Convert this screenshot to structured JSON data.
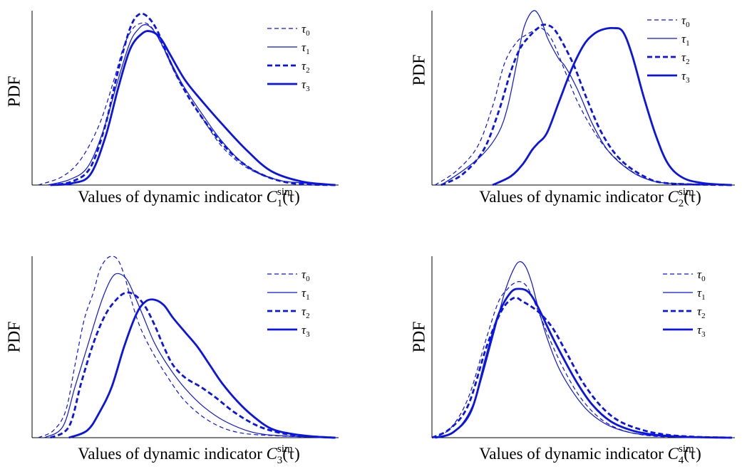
{
  "colors": {
    "line": "#0a14e6",
    "axis": "#000000"
  },
  "chart_data": [
    {
      "type": "line",
      "ylabel": "PDF",
      "xlabel": {
        "prefix": "Values of dynamic indicator ",
        "symbol": "C",
        "sup": "sim",
        "sub": "1",
        "suffix": "(τ)"
      },
      "legend_placement": "top-right",
      "series": [
        {
          "name": "τ0",
          "style": "thin-dashed",
          "x": [
            0.02,
            0.1,
            0.16,
            0.22,
            0.27,
            0.3,
            0.33,
            0.36,
            0.38,
            0.4,
            0.43,
            0.48,
            0.55,
            0.62,
            0.7,
            0.8,
            0.9,
            0.99
          ],
          "y": [
            0,
            0.05,
            0.15,
            0.35,
            0.62,
            0.8,
            0.9,
            0.93,
            0.92,
            0.88,
            0.78,
            0.6,
            0.4,
            0.22,
            0.1,
            0.03,
            0.01,
            0
          ]
        },
        {
          "name": "τ1",
          "style": "thin-solid",
          "x": [
            0.05,
            0.12,
            0.18,
            0.23,
            0.28,
            0.32,
            0.35,
            0.37,
            0.39,
            0.41,
            0.44,
            0.49,
            0.55,
            0.62,
            0.7,
            0.8,
            0.9,
            0.99
          ],
          "y": [
            0,
            0.03,
            0.1,
            0.3,
            0.6,
            0.82,
            0.9,
            0.92,
            0.9,
            0.85,
            0.75,
            0.58,
            0.42,
            0.25,
            0.11,
            0.03,
            0.01,
            0
          ]
        },
        {
          "name": "τ2",
          "style": "thick-dashed",
          "x": [
            0.06,
            0.13,
            0.19,
            0.24,
            0.28,
            0.32,
            0.35,
            0.38,
            0.41,
            0.44,
            0.48,
            0.53,
            0.6,
            0.67,
            0.75,
            0.85,
            0.99
          ],
          "y": [
            0,
            0.02,
            0.1,
            0.35,
            0.65,
            0.9,
            0.98,
            0.96,
            0.88,
            0.75,
            0.6,
            0.45,
            0.28,
            0.15,
            0.06,
            0.01,
            0
          ]
        },
        {
          "name": "τ3",
          "style": "thick-solid",
          "x": [
            0.06,
            0.13,
            0.19,
            0.24,
            0.28,
            0.32,
            0.36,
            0.39,
            0.42,
            0.45,
            0.5,
            0.56,
            0.63,
            0.7,
            0.78,
            0.88,
            0.99
          ],
          "y": [
            0,
            0.01,
            0.06,
            0.28,
            0.55,
            0.78,
            0.87,
            0.88,
            0.84,
            0.75,
            0.6,
            0.47,
            0.33,
            0.2,
            0.08,
            0.02,
            0
          ]
        }
      ]
    },
    {
      "type": "line",
      "ylabel": "PDF",
      "xlabel": {
        "prefix": "Values of dynamic indicator ",
        "symbol": "C",
        "sup": "sim",
        "sub": "2",
        "suffix": "(τ)"
      },
      "legend_placement": "top-right",
      "series": [
        {
          "name": "τ0",
          "style": "thin-dashed",
          "x": [
            0.01,
            0.08,
            0.15,
            0.2,
            0.24,
            0.28,
            0.31,
            0.33,
            0.35,
            0.37,
            0.4,
            0.44,
            0.48,
            0.53,
            0.58,
            0.65,
            0.72,
            0.8,
            0.99
          ],
          "y": [
            0,
            0.08,
            0.22,
            0.45,
            0.7,
            0.82,
            0.86,
            0.88,
            0.9,
            0.89,
            0.82,
            0.65,
            0.48,
            0.32,
            0.2,
            0.09,
            0.03,
            0.01,
            0
          ]
        },
        {
          "name": "τ1",
          "style": "thin-solid",
          "x": [
            0.03,
            0.1,
            0.17,
            0.22,
            0.25,
            0.28,
            0.3,
            0.32,
            0.34,
            0.36,
            0.38,
            0.4,
            0.42,
            0.44,
            0.48,
            0.53,
            0.58,
            0.64,
            0.7,
            0.78,
            0.99
          ],
          "y": [
            0,
            0.08,
            0.18,
            0.3,
            0.45,
            0.7,
            0.88,
            0.97,
            1.0,
            0.95,
            0.85,
            0.78,
            0.72,
            0.68,
            0.55,
            0.35,
            0.2,
            0.1,
            0.04,
            0.01,
            0
          ]
        },
        {
          "name": "τ2",
          "style": "thick-dashed",
          "x": [
            0.03,
            0.1,
            0.17,
            0.22,
            0.26,
            0.29,
            0.32,
            0.35,
            0.37,
            0.4,
            0.43,
            0.47,
            0.51,
            0.56,
            0.62,
            0.7,
            0.78,
            0.99
          ],
          "y": [
            0,
            0.06,
            0.2,
            0.42,
            0.65,
            0.78,
            0.85,
            0.9,
            0.92,
            0.9,
            0.82,
            0.68,
            0.5,
            0.3,
            0.15,
            0.05,
            0.01,
            0
          ]
        },
        {
          "name": "τ3",
          "style": "thick-solid",
          "x": [
            0.2,
            0.26,
            0.3,
            0.33,
            0.35,
            0.38,
            0.42,
            0.46,
            0.5,
            0.53,
            0.56,
            0.6,
            0.63,
            0.66,
            0.7,
            0.74,
            0.78,
            0.83,
            0.9,
            0.99
          ],
          "y": [
            0,
            0.05,
            0.12,
            0.2,
            0.24,
            0.3,
            0.48,
            0.66,
            0.8,
            0.86,
            0.89,
            0.9,
            0.88,
            0.75,
            0.5,
            0.28,
            0.12,
            0.04,
            0.01,
            0
          ]
        }
      ]
    },
    {
      "type": "line",
      "ylabel": "PDF",
      "xlabel": {
        "prefix": "Values of dynamic indicator ",
        "symbol": "C",
        "sup": "sim",
        "sub": "3",
        "suffix": "(τ)"
      },
      "legend_placement": "top-right",
      "series": [
        {
          "name": "τ0",
          "style": "thin-dashed",
          "x": [
            0.02,
            0.07,
            0.11,
            0.14,
            0.17,
            0.2,
            0.22,
            0.24,
            0.26,
            0.28,
            0.3,
            0.32,
            0.35,
            0.39,
            0.44,
            0.5,
            0.58,
            0.67,
            0.8,
            0.99
          ],
          "y": [
            0,
            0.04,
            0.15,
            0.4,
            0.65,
            0.8,
            0.92,
            0.98,
            1.0,
            0.98,
            0.9,
            0.78,
            0.62,
            0.48,
            0.34,
            0.2,
            0.09,
            0.03,
            0.01,
            0
          ]
        },
        {
          "name": "τ1",
          "style": "thin-solid",
          "x": [
            0.04,
            0.1,
            0.14,
            0.18,
            0.22,
            0.25,
            0.27,
            0.29,
            0.31,
            0.33,
            0.36,
            0.4,
            0.45,
            0.5,
            0.56,
            0.63,
            0.72,
            0.82,
            0.99
          ],
          "y": [
            0,
            0.06,
            0.28,
            0.5,
            0.72,
            0.85,
            0.9,
            0.9,
            0.87,
            0.8,
            0.68,
            0.52,
            0.38,
            0.27,
            0.17,
            0.09,
            0.03,
            0.01,
            0
          ]
        },
        {
          "name": "τ2",
          "style": "thick-dashed",
          "x": [
            0.06,
            0.12,
            0.16,
            0.2,
            0.24,
            0.28,
            0.31,
            0.34,
            0.37,
            0.4,
            0.43,
            0.46,
            0.5,
            0.55,
            0.6,
            0.66,
            0.73,
            0.8,
            0.88,
            0.99
          ],
          "y": [
            0,
            0.06,
            0.3,
            0.52,
            0.68,
            0.77,
            0.8,
            0.78,
            0.72,
            0.62,
            0.5,
            0.4,
            0.33,
            0.28,
            0.22,
            0.14,
            0.07,
            0.03,
            0.01,
            0
          ]
        },
        {
          "name": "τ3",
          "style": "thick-solid",
          "x": [
            0.12,
            0.18,
            0.22,
            0.26,
            0.3,
            0.34,
            0.37,
            0.4,
            0.43,
            0.46,
            0.5,
            0.54,
            0.58,
            0.62,
            0.67,
            0.72,
            0.78,
            0.85,
            0.93,
            0.99
          ],
          "y": [
            0,
            0.04,
            0.14,
            0.28,
            0.5,
            0.68,
            0.75,
            0.76,
            0.73,
            0.66,
            0.58,
            0.5,
            0.4,
            0.3,
            0.2,
            0.12,
            0.05,
            0.02,
            0.005,
            0
          ]
        }
      ]
    },
    {
      "type": "line",
      "ylabel": "PDF",
      "xlabel": {
        "prefix": "Values of dynamic indicator ",
        "symbol": "C",
        "sup": "sim",
        "sub": "4",
        "suffix": "(τ)"
      },
      "legend_placement": "top-right",
      "series": [
        {
          "name": "τ0",
          "style": "thin-dashed",
          "x": [
            0.0,
            0.06,
            0.12,
            0.18,
            0.22,
            0.25,
            0.27,
            0.29,
            0.31,
            0.33,
            0.36,
            0.4,
            0.45,
            0.5,
            0.56,
            0.63,
            0.72,
            0.82,
            0.99
          ],
          "y": [
            0,
            0.05,
            0.22,
            0.55,
            0.75,
            0.82,
            0.85,
            0.86,
            0.84,
            0.78,
            0.66,
            0.5,
            0.33,
            0.2,
            0.1,
            0.04,
            0.01,
            0.003,
            0
          ]
        },
        {
          "name": "τ1",
          "style": "thin-solid",
          "x": [
            0.02,
            0.08,
            0.14,
            0.2,
            0.24,
            0.27,
            0.29,
            0.31,
            0.33,
            0.35,
            0.38,
            0.42,
            0.47,
            0.52,
            0.58,
            0.65,
            0.74,
            0.85,
            0.99
          ],
          "y": [
            0,
            0.04,
            0.2,
            0.55,
            0.8,
            0.93,
            0.97,
            0.94,
            0.85,
            0.72,
            0.55,
            0.38,
            0.24,
            0.14,
            0.07,
            0.03,
            0.01,
            0.002,
            0
          ]
        },
        {
          "name": "τ2",
          "style": "thick-dashed",
          "x": [
            0.0,
            0.06,
            0.12,
            0.18,
            0.23,
            0.27,
            0.3,
            0.33,
            0.36,
            0.4,
            0.45,
            0.5,
            0.56,
            0.62,
            0.7,
            0.78,
            0.88,
            0.99
          ],
          "y": [
            0,
            0.05,
            0.18,
            0.5,
            0.7,
            0.77,
            0.75,
            0.72,
            0.68,
            0.6,
            0.45,
            0.3,
            0.17,
            0.09,
            0.04,
            0.015,
            0.004,
            0
          ]
        },
        {
          "name": "τ3",
          "style": "thick-solid",
          "x": [
            0.01,
            0.07,
            0.13,
            0.18,
            0.22,
            0.26,
            0.29,
            0.32,
            0.35,
            0.39,
            0.43,
            0.48,
            0.53,
            0.59,
            0.66,
            0.74,
            0.84,
            0.99
          ],
          "y": [
            0,
            0.03,
            0.15,
            0.45,
            0.68,
            0.8,
            0.82,
            0.8,
            0.72,
            0.58,
            0.45,
            0.3,
            0.18,
            0.09,
            0.04,
            0.015,
            0.004,
            0
          ]
        }
      ]
    }
  ]
}
